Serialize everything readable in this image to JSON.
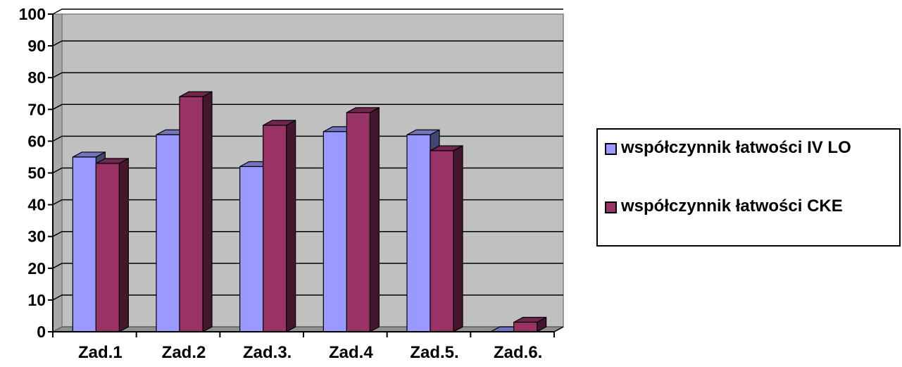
{
  "chart_data": {
    "type": "bar",
    "categories": [
      "Zad.1",
      "Zad.2",
      "Zad.3.",
      "Zad.4",
      "Zad.5.",
      "Zad.6."
    ],
    "series": [
      {
        "name": "współczynnik łatwości IV LO",
        "values": [
          55,
          62,
          52,
          63,
          62,
          0
        ],
        "color": "#9999ff"
      },
      {
        "name": "współczynnik łatwości CKE",
        "values": [
          53,
          74,
          65,
          69,
          57,
          3
        ],
        "color": "#993366"
      }
    ],
    "ylim": [
      0,
      100
    ],
    "yticks": [
      0,
      10,
      20,
      30,
      40,
      50,
      60,
      70,
      80,
      90,
      100
    ],
    "grid": true,
    "legend": "right",
    "plot_background": "#c0c0c0"
  }
}
